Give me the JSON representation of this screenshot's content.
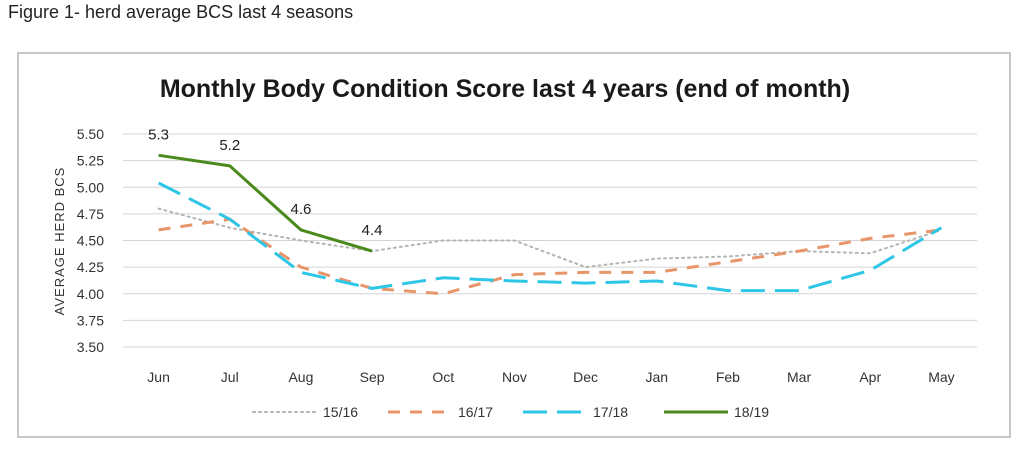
{
  "caption": "Figure 1- herd average BCS last 4 seasons",
  "chart_data": {
    "type": "line",
    "title": "Monthly Body Condition Score last 4 years (end of month)",
    "xlabel": "",
    "ylabel": "AVERAGE HERD BCS",
    "categories": [
      "Jun",
      "Jul",
      "Aug",
      "Sep",
      "Oct",
      "Nov",
      "Dec",
      "Jan",
      "Feb",
      "Mar",
      "Apr",
      "May"
    ],
    "ylim": [
      3.5,
      5.5
    ],
    "yticks": [
      "5.50",
      "5.25",
      "5.00",
      "4.75",
      "4.50",
      "4.25",
      "4.00",
      "3.75",
      "3.50"
    ],
    "grid": true,
    "legend_position": "bottom",
    "series": [
      {
        "name": "15/16",
        "color": "#b4b4b4",
        "style": "dotted",
        "values": [
          4.8,
          4.62,
          4.5,
          4.4,
          4.5,
          4.5,
          4.25,
          4.33,
          4.35,
          4.4,
          4.38,
          4.6
        ]
      },
      {
        "name": "16/17",
        "color": "#e8956a",
        "style": "dashed",
        "values": [
          4.6,
          4.7,
          4.25,
          4.05,
          4.0,
          4.18,
          4.2,
          4.2,
          4.3,
          4.4,
          4.52,
          4.6
        ]
      },
      {
        "name": "17/18",
        "color": "#2ec6e6",
        "style": "longdash",
        "values": [
          5.04,
          4.7,
          4.2,
          4.05,
          4.15,
          4.12,
          4.1,
          4.12,
          4.03,
          4.03,
          4.22,
          4.62
        ]
      },
      {
        "name": "18/19",
        "color": "#4a8a1c",
        "style": "solid",
        "values": [
          5.3,
          5.2,
          4.6,
          4.4,
          null,
          null,
          null,
          null,
          null,
          null,
          null,
          null
        ]
      }
    ],
    "data_labels": [
      {
        "series": "18/19",
        "index": 0,
        "text": "5.3"
      },
      {
        "series": "18/19",
        "index": 1,
        "text": "5.2"
      },
      {
        "series": "18/19",
        "index": 2,
        "text": "4.6"
      },
      {
        "series": "18/19",
        "index": 3,
        "text": "4.4"
      }
    ]
  }
}
